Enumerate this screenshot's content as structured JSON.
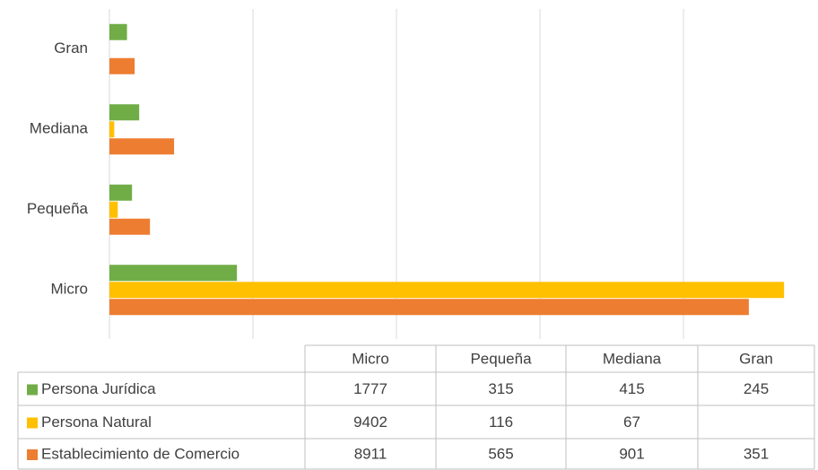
{
  "chart_data": {
    "type": "bar",
    "orientation": "horizontal",
    "categories": [
      "Micro",
      "Pequeña",
      "Mediana",
      "Gran"
    ],
    "series": [
      {
        "name": "Persona Jurídica",
        "color": "#70ad47",
        "values": [
          1777,
          315,
          415,
          245
        ]
      },
      {
        "name": "Persona Natural",
        "color": "#ffc000",
        "values": [
          9402,
          116,
          67,
          null
        ]
      },
      {
        "name": "Establecimiento de Comercio",
        "color": "#ed7d31",
        "values": [
          8911,
          565,
          901,
          351
        ]
      }
    ],
    "xlim": [
      0,
      9800
    ],
    "xticks": [
      0,
      2000,
      4000,
      6000,
      8000
    ],
    "grid": true,
    "data_table": true
  }
}
